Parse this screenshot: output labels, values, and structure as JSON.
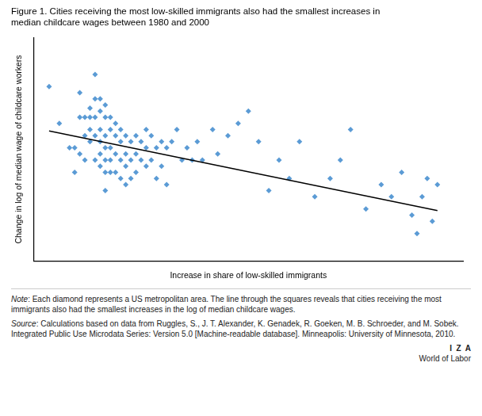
{
  "chart_data": {
    "type": "scatter",
    "title": "Figure 1. Cities receiving the most low-skilled immigrants also had the smallest increases in\nmedian childcare wages between 1980 and 2000",
    "xlabel": "Increase in share of low-skilled immigrants",
    "ylabel": "Change in log of median wage of childcare workers",
    "xlim": [
      0.0,
      0.84
    ],
    "ylim": [
      0.05,
      0.78
    ],
    "tick_labels": false,
    "grid": false,
    "series": [
      {
        "type": "scatter",
        "marker": "diamond",
        "color": "#5b9bd5",
        "x": [
          0.03,
          0.05,
          0.07,
          0.08,
          0.08,
          0.09,
          0.09,
          0.09,
          0.1,
          0.1,
          0.1,
          0.11,
          0.11,
          0.11,
          0.11,
          0.12,
          0.12,
          0.12,
          0.12,
          0.12,
          0.13,
          0.13,
          0.13,
          0.13,
          0.13,
          0.13,
          0.14,
          0.14,
          0.14,
          0.14,
          0.14,
          0.14,
          0.14,
          0.15,
          0.15,
          0.15,
          0.15,
          0.15,
          0.16,
          0.16,
          0.16,
          0.16,
          0.17,
          0.17,
          0.17,
          0.17,
          0.18,
          0.18,
          0.18,
          0.18,
          0.19,
          0.19,
          0.19,
          0.2,
          0.2,
          0.2,
          0.21,
          0.21,
          0.22,
          0.22,
          0.22,
          0.23,
          0.23,
          0.24,
          0.24,
          0.25,
          0.25,
          0.26,
          0.26,
          0.27,
          0.28,
          0.29,
          0.3,
          0.31,
          0.32,
          0.33,
          0.35,
          0.36,
          0.38,
          0.4,
          0.42,
          0.44,
          0.46,
          0.48,
          0.5,
          0.52,
          0.55,
          0.58,
          0.6,
          0.62,
          0.65,
          0.68,
          0.7,
          0.72,
          0.74,
          0.75,
          0.76,
          0.77,
          0.78,
          0.79
        ],
        "values": [
          0.62,
          0.5,
          0.42,
          0.42,
          0.34,
          0.6,
          0.52,
          0.4,
          0.52,
          0.46,
          0.38,
          0.55,
          0.52,
          0.48,
          0.44,
          0.66,
          0.58,
          0.52,
          0.46,
          0.38,
          0.58,
          0.54,
          0.48,
          0.44,
          0.4,
          0.36,
          0.56,
          0.52,
          0.46,
          0.42,
          0.38,
          0.34,
          0.28,
          0.52,
          0.48,
          0.42,
          0.38,
          0.34,
          0.5,
          0.46,
          0.4,
          0.34,
          0.48,
          0.44,
          0.38,
          0.32,
          0.46,
          0.4,
          0.36,
          0.3,
          0.44,
          0.38,
          0.32,
          0.46,
          0.4,
          0.34,
          0.44,
          0.38,
          0.48,
          0.42,
          0.36,
          0.46,
          0.38,
          0.42,
          0.32,
          0.44,
          0.36,
          0.42,
          0.3,
          0.44,
          0.48,
          0.38,
          0.42,
          0.38,
          0.44,
          0.38,
          0.48,
          0.4,
          0.46,
          0.5,
          0.54,
          0.44,
          0.28,
          0.38,
          0.32,
          0.44,
          0.26,
          0.32,
          0.38,
          0.48,
          0.22,
          0.3,
          0.26,
          0.34,
          0.2,
          0.14,
          0.26,
          0.32,
          0.18,
          0.3
        ]
      },
      {
        "type": "line",
        "line_style": "solid",
        "color": "#000000",
        "x": [
          0.03,
          0.79
        ],
        "values": [
          0.475,
          0.215
        ]
      }
    ],
    "annotations": [
      "Note: Each diamond represents a US metropolitan area. The line through the squares reveals that cities receiving the most immigrants also had the smallest increases in the log of median childcare wages.",
      "Source: Calculations based on data from Ruggles, S., J. T. Alexander, K. Genadek, R. Goeken, M. B. Schroeder, and M. Sobek. Integrated Public Use Microdata Series: Version 5.0 [Machine-readable database]. Minneapolis: University of Minnesota, 2010.",
      "I  Z  A",
      "World of Labor"
    ]
  }
}
